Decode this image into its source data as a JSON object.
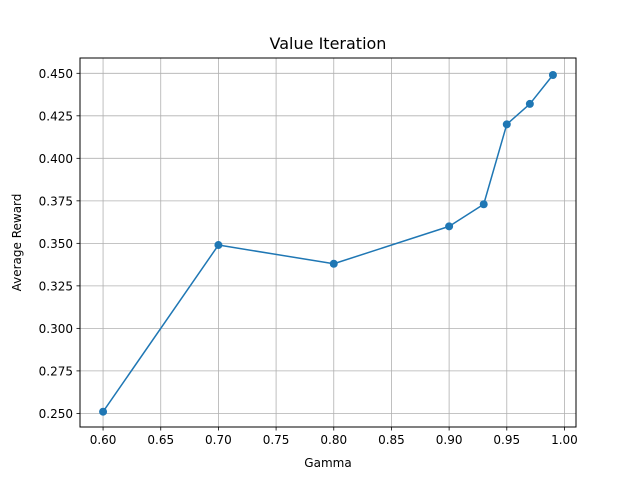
{
  "chart_data": {
    "type": "line",
    "title": "Value Iteration",
    "xlabel": "Gamma",
    "ylabel": "Average Reward",
    "xlim": [
      0.58,
      1.01
    ],
    "ylim": [
      0.242,
      0.459
    ],
    "grid": true,
    "x_ticks": [
      0.6,
      0.65,
      0.7,
      0.75,
      0.8,
      0.85,
      0.9,
      0.95,
      1.0
    ],
    "x_tick_labels": [
      "0.60",
      "0.65",
      "0.70",
      "0.75",
      "0.80",
      "0.85",
      "0.90",
      "0.95",
      "1.00"
    ],
    "y_ticks": [
      0.25,
      0.275,
      0.3,
      0.325,
      0.35,
      0.375,
      0.4,
      0.425,
      0.45
    ],
    "y_tick_labels": [
      "0.250",
      "0.275",
      "0.300",
      "0.325",
      "0.350",
      "0.375",
      "0.400",
      "0.425",
      "0.450"
    ],
    "series": [
      {
        "color": "#1f77b4",
        "marker": "circle",
        "x": [
          0.6,
          0.7,
          0.8,
          0.9,
          0.93,
          0.95,
          0.97,
          0.99
        ],
        "y": [
          0.251,
          0.349,
          0.338,
          0.36,
          0.373,
          0.42,
          0.432,
          0.449
        ]
      }
    ]
  }
}
